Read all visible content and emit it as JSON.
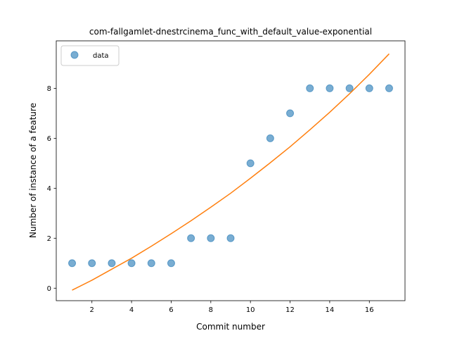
{
  "chart_data": {
    "type": "scatter",
    "title": "com-fallgamlet-dnestrcinema_func_with_default_value-exponential",
    "xlabel": "Commit number",
    "ylabel": "Number of instance of a feature",
    "xlim": [
      0.2,
      17.8
    ],
    "ylim": [
      -0.5,
      9.9
    ],
    "xticks": [
      2,
      4,
      6,
      8,
      10,
      12,
      14,
      16
    ],
    "yticks": [
      0,
      2,
      4,
      6,
      8
    ],
    "legend_position": "top-left",
    "series": [
      {
        "name": "data",
        "kind": "scatter",
        "color": "#1f77b4",
        "x": [
          1,
          2,
          3,
          4,
          5,
          6,
          7,
          8,
          9,
          10,
          11,
          12,
          13,
          14,
          15,
          16,
          17
        ],
        "y": [
          1,
          1,
          1,
          1,
          1,
          1,
          2,
          2,
          2,
          5,
          6,
          7,
          8,
          8,
          8,
          8,
          8
        ]
      },
      {
        "kind": "line",
        "color": "#ff7f0e",
        "x": [
          1,
          2,
          3,
          4,
          5,
          6,
          7,
          8,
          9,
          10,
          11,
          12,
          13,
          14,
          15,
          16,
          17
        ],
        "y": [
          -0.08,
          0.32,
          0.76,
          1.2,
          1.68,
          2.18,
          2.7,
          3.24,
          3.8,
          4.4,
          5.02,
          5.66,
          6.34,
          7.04,
          7.78,
          8.56,
          9.38
        ]
      }
    ]
  }
}
